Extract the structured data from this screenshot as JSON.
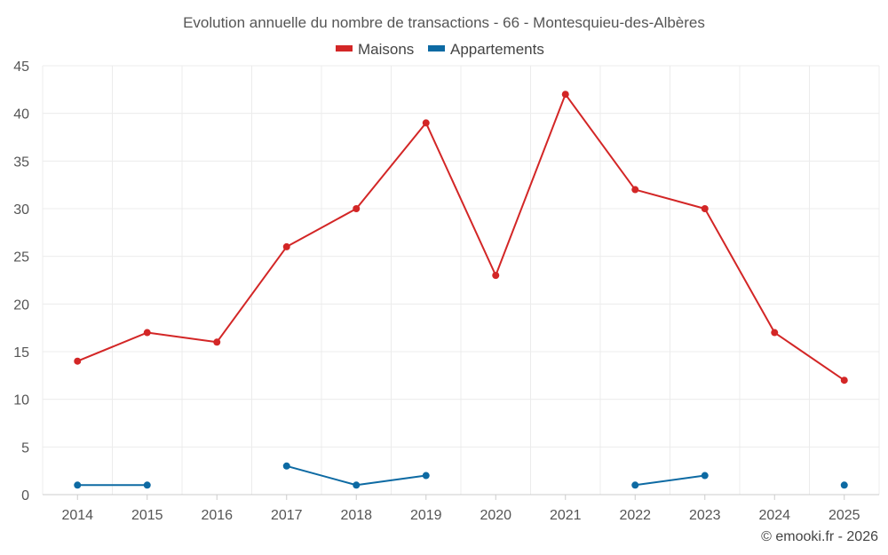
{
  "chart_data": {
    "type": "line",
    "title": "Evolution annuelle du nombre de transactions - 66 - Montesquieu-des-Albères",
    "categories": [
      "2014",
      "2015",
      "2016",
      "2017",
      "2018",
      "2019",
      "2020",
      "2021",
      "2022",
      "2023",
      "2024",
      "2025"
    ],
    "series": [
      {
        "name": "Maisons",
        "color": "#d32626",
        "values": [
          14,
          17,
          16,
          26,
          30,
          39,
          23,
          42,
          32,
          30,
          17,
          12
        ]
      },
      {
        "name": "Appartements",
        "color": "#0d6aa3",
        "values": [
          1,
          1,
          null,
          3,
          1,
          2,
          null,
          null,
          1,
          2,
          null,
          1
        ]
      }
    ],
    "ylim": [
      0,
      45
    ],
    "yticks": [
      0,
      5,
      10,
      15,
      20,
      25,
      30,
      35,
      40,
      45
    ],
    "ytick_labels": [
      "0",
      "5",
      "10",
      "15",
      "20",
      "25",
      "30",
      "35",
      "40",
      "45"
    ],
    "xlabel": "",
    "ylabel": "",
    "grid": true,
    "legend_position": "top-center"
  },
  "credit": "© emooki.fr - 2026"
}
